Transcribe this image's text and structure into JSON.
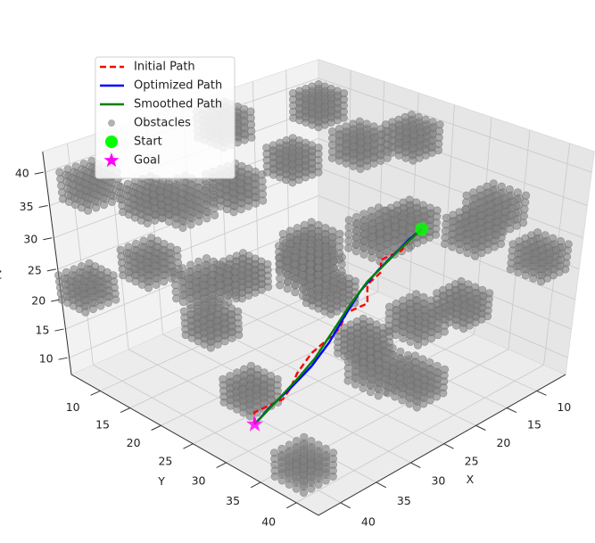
{
  "chart_data": {
    "type": "scatter3d",
    "xlabel": "X",
    "ylabel": "Y",
    "zlabel": "Z",
    "xlim": [
      5,
      43
    ],
    "ylim": [
      5,
      43
    ],
    "zlim": [
      7,
      43
    ],
    "xticks": [
      10,
      15,
      20,
      25,
      30,
      35,
      40
    ],
    "yticks": [
      10,
      15,
      20,
      25,
      30,
      35,
      40
    ],
    "zticks": [
      10,
      15,
      20,
      25,
      30,
      35,
      40
    ],
    "grid": true,
    "legend": "upper left",
    "series": [
      {
        "name": "Initial Path",
        "type": "line",
        "color": "#ff0000",
        "dashed": true,
        "x": [
          39,
          39,
          36,
          34,
          33,
          30,
          29,
          27,
          26,
          24,
          23,
          21,
          20,
          18,
          17,
          15
        ],
        "y": [
          30,
          30,
          31,
          30,
          30,
          29,
          30,
          30,
          30,
          31,
          30,
          30,
          29,
          30,
          30,
          30
        ],
        "z": [
          11,
          13,
          14,
          14,
          16,
          17,
          19,
          20,
          22,
          23,
          25,
          26,
          27,
          28,
          29,
          30
        ]
      },
      {
        "name": "Optimized Path",
        "type": "line",
        "color": "#0000ff",
        "dashed": false,
        "x": [
          39,
          37,
          34,
          31.5,
          29,
          26.5,
          24,
          21.5,
          19,
          17,
          15
        ],
        "y": [
          30,
          30,
          30,
          30.5,
          30.5,
          30.3,
          30,
          30,
          30,
          30,
          30
        ],
        "z": [
          11,
          12.5,
          14,
          16.5,
          19,
          22,
          24.5,
          26.5,
          28,
          29.2,
          30
        ]
      },
      {
        "name": "Smoothed Path",
        "type": "line",
        "color": "#008000",
        "dashed": false,
        "x": [
          39,
          36,
          33,
          30.5,
          28,
          25.5,
          23,
          20.5,
          18,
          15
        ],
        "y": [
          30,
          30,
          30,
          30,
          30,
          30,
          30,
          30,
          30,
          30
        ],
        "z": [
          11,
          13,
          15,
          17,
          20,
          23,
          25.5,
          27,
          28.5,
          30
        ]
      },
      {
        "name": "Obstacles",
        "type": "boxes",
        "color": "#808080",
        "boxes": [
          {
            "x": [
              5,
              9
            ],
            "y": [
              5,
              9
            ],
            "z": [
              35,
              39
            ]
          },
          {
            "x": [
              6,
              10
            ],
            "y": [
              20,
              24
            ],
            "z": [
              36,
              40
            ]
          },
          {
            "x": [
              12,
              16
            ],
            "y": [
              8,
              12
            ],
            "z": [
              30,
              34
            ]
          },
          {
            "x": [
              20,
              24
            ],
            "y": [
              6,
              10
            ],
            "z": [
              38,
              42
            ]
          },
          {
            "x": [
              30,
              34
            ],
            "y": [
              5,
              9
            ],
            "z": [
              30,
              34
            ]
          },
          {
            "x": [
              38,
              42
            ],
            "y": [
              6,
              10
            ],
            "z": [
              36,
              40
            ]
          },
          {
            "x": [
              39,
              43
            ],
            "y": [
              5,
              9
            ],
            "z": [
              20,
              24
            ]
          },
          {
            "x": [
              36,
              40
            ],
            "y": [
              12,
              16
            ],
            "z": [
              26,
              30
            ]
          },
          {
            "x": [
              26,
              30
            ],
            "y": [
              14,
              18
            ],
            "z": [
              34,
              38
            ]
          },
          {
            "x": [
              18,
              22
            ],
            "y": [
              16,
              20
            ],
            "z": [
              20,
              24
            ]
          },
          {
            "x": [
              8,
              12
            ],
            "y": [
              30,
              34
            ],
            "z": [
              14,
              18
            ]
          },
          {
            "x": [
              6,
              10
            ],
            "y": [
              38,
              42
            ],
            "z": [
              25,
              29
            ]
          },
          {
            "x": [
              14,
              18
            ],
            "y": [
              38,
              42
            ],
            "z": [
              36,
              40
            ]
          },
          {
            "x": [
              22,
              26
            ],
            "y": [
              36,
              40
            ],
            "z": [
              12,
              16
            ]
          },
          {
            "x": [
              30,
              34
            ],
            "y": [
              38,
              42
            ],
            "z": [
              20,
              24
            ]
          },
          {
            "x": [
              38,
              42
            ],
            "y": [
              36,
              40
            ],
            "z": [
              8,
              12
            ]
          },
          {
            "x": [
              39,
              43
            ],
            "y": [
              24,
              28
            ],
            "z": [
              30,
              34
            ]
          },
          {
            "x": [
              32,
              36
            ],
            "y": [
              22,
              26
            ],
            "z": [
              8,
              12
            ]
          },
          {
            "x": [
              24,
              28
            ],
            "y": [
              23,
              27
            ],
            "z": [
              28,
              32
            ]
          },
          {
            "x": [
              10,
              14
            ],
            "y": [
              12,
              16
            ],
            "z": [
              8,
              12
            ]
          },
          {
            "x": [
              16,
              20
            ],
            "y": [
              23,
              27
            ],
            "z": [
              8,
              12
            ]
          },
          {
            "x": [
              34,
              38
            ],
            "y": [
              33,
              37
            ],
            "z": [
              34,
              38
            ]
          },
          {
            "x": [
              26,
              30
            ],
            "y": [
              34,
              38
            ],
            "z": [
              36,
              40
            ]
          },
          {
            "x": [
              8,
              12
            ],
            "y": [
              22,
              26
            ],
            "z": [
              24,
              28
            ]
          },
          {
            "x": [
              20,
              24
            ],
            "y": [
              8,
              12
            ],
            "z": [
              14,
              18
            ]
          },
          {
            "x": [
              30,
              34
            ],
            "y": [
              14,
              18
            ],
            "z": [
              14,
              18
            ]
          },
          {
            "x": [
              14,
              18
            ],
            "y": [
              20,
              24
            ],
            "z": [
              38,
              42
            ]
          },
          {
            "x": [
              36,
              40
            ],
            "y": [
              18,
              22
            ],
            "z": [
              38,
              42
            ]
          },
          {
            "x": [
              20,
              24
            ],
            "y": [
              34,
              38
            ],
            "z": [
              20,
              24
            ]
          },
          {
            "x": [
              12,
              16
            ],
            "y": [
              34,
              38
            ],
            "z": [
              30,
              34
            ]
          }
        ]
      },
      {
        "name": "Start",
        "type": "scatter",
        "marker": "circle",
        "color": "#00ff00",
        "x": [
          15
        ],
        "y": [
          30
        ],
        "z": [
          30
        ]
      },
      {
        "name": "Goal",
        "type": "scatter",
        "marker": "star",
        "color": "#ff00ff",
        "x": [
          39
        ],
        "y": [
          30
        ],
        "z": [
          11
        ]
      }
    ]
  }
}
